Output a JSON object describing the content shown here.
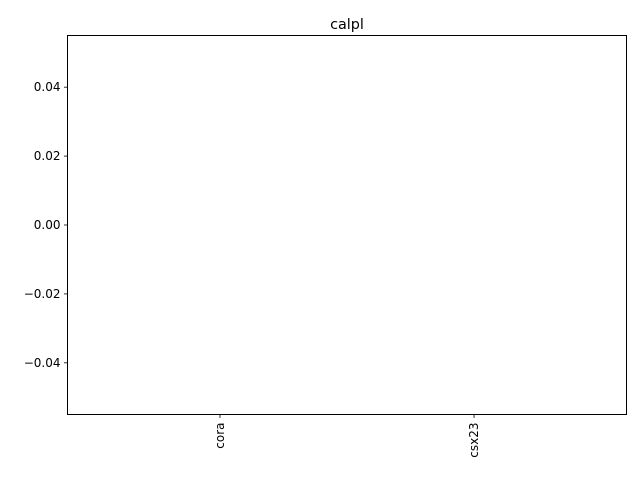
{
  "chart_data": {
    "type": "bar",
    "title": "calpl",
    "xlabel": "",
    "ylabel": "",
    "categories": [
      "cora",
      "csx23"
    ],
    "series": [
      {
        "values": [
          0,
          0
        ]
      }
    ],
    "ylim": [
      -0.055,
      0.055
    ],
    "yticks": [
      -0.04,
      -0.02,
      0.0,
      0.02,
      0.04
    ],
    "ytick_labels": [
      "−0.04",
      "−0.02",
      "0.00",
      "0.02",
      "0.04"
    ],
    "grid": false,
    "legend": "none",
    "colors": {
      "frame": "#000000",
      "background": "#ffffff",
      "bar": "#1f77b4"
    }
  }
}
